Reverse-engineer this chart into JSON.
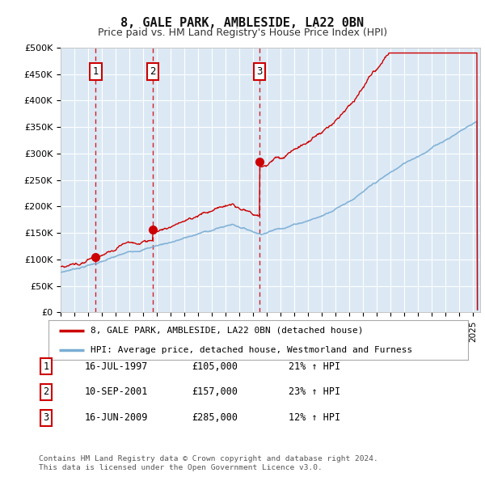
{
  "title": "8, GALE PARK, AMBLESIDE, LA22 0BN",
  "subtitle": "Price paid vs. HM Land Registry's House Price Index (HPI)",
  "ylabel_ticks": [
    "£0",
    "£50K",
    "£100K",
    "£150K",
    "£200K",
    "£250K",
    "£300K",
    "£350K",
    "£400K",
    "£450K",
    "£500K"
  ],
  "ytick_values": [
    0,
    50000,
    100000,
    150000,
    200000,
    250000,
    300000,
    350000,
    400000,
    450000,
    500000
  ],
  "ylim": [
    0,
    500000
  ],
  "xlim_start": 1995.0,
  "xlim_end": 2025.5,
  "sales": [
    {
      "year": 1997.54,
      "price": 105000,
      "label": "1"
    },
    {
      "year": 2001.69,
      "price": 157000,
      "label": "2"
    },
    {
      "year": 2009.46,
      "price": 285000,
      "label": "3"
    }
  ],
  "legend_line1": "8, GALE PARK, AMBLESIDE, LA22 0BN (detached house)",
  "legend_line2": "HPI: Average price, detached house, Westmorland and Furness",
  "table_rows": [
    {
      "num": "1",
      "date": "16-JUL-1997",
      "price": "£105,000",
      "hpi": "21% ↑ HPI"
    },
    {
      "num": "2",
      "date": "10-SEP-2001",
      "price": "£157,000",
      "hpi": "23% ↑ HPI"
    },
    {
      "num": "3",
      "date": "16-JUN-2009",
      "price": "£285,000",
      "hpi": "12% ↑ HPI"
    }
  ],
  "footnote1": "Contains HM Land Registry data © Crown copyright and database right 2024.",
  "footnote2": "This data is licensed under the Open Government Licence v3.0.",
  "fig_bg_color": "#ffffff",
  "plot_bg_color": "#dce9f5",
  "grid_color": "#ffffff",
  "line_color_red": "#cc0000",
  "line_color_blue": "#7aadd4",
  "sale_dot_color": "#cc0000",
  "dashed_color": "#cc0000"
}
